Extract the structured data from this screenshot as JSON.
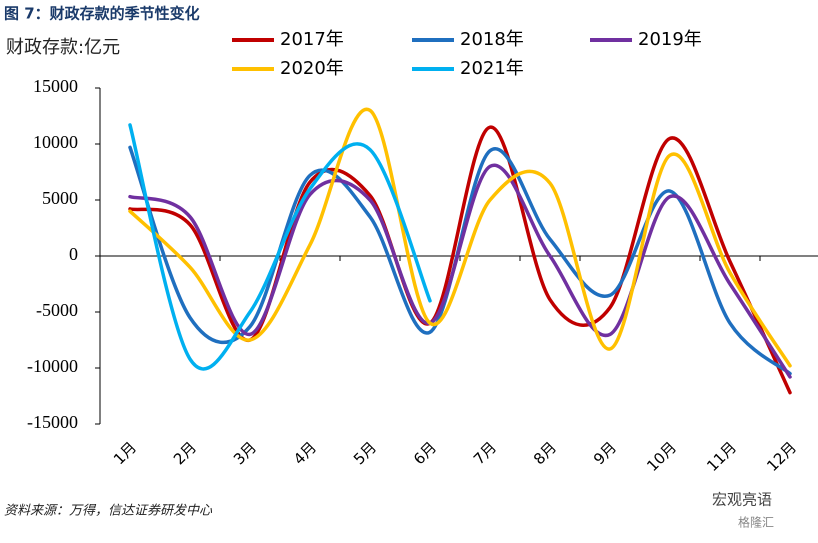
{
  "chart_data": {
    "type": "line",
    "title": "图 7：财政存款的季节性变化",
    "y_label": "财政存款:亿元",
    "source": "资料来源：万得，信达证券研发中心",
    "watermark": [
      "宏观亮语",
      "格隆汇"
    ],
    "categories": [
      "1月",
      "2月",
      "3月",
      "4月",
      "5月",
      "6月",
      "7月",
      "8月",
      "9月",
      "10月",
      "11月",
      "12月"
    ],
    "series": [
      {
        "name": "2017年",
        "color": "#c00000",
        "values": [
          4200,
          2800,
          -7500,
          6600,
          5400,
          -6000,
          11500,
          -3900,
          -4600,
          10500,
          -500,
          -12200
        ]
      },
      {
        "name": "2018年",
        "color": "#1f6fbf",
        "values": [
          9700,
          -5500,
          -6300,
          7200,
          3500,
          -6800,
          9400,
          1500,
          -3500,
          5800,
          -6000,
          -10500
        ]
      },
      {
        "name": "2019年",
        "color": "#7030a0",
        "values": [
          5300,
          3500,
          -7000,
          5500,
          5000,
          -6000,
          8000,
          0,
          -7000,
          5300,
          -2500,
          -10800
        ]
      },
      {
        "name": "2020年",
        "color": "#ffc000",
        "values": [
          4000,
          -1000,
          -7500,
          1000,
          13000,
          -6000,
          5000,
          6500,
          -8300,
          9000,
          -1500,
          -9800
        ]
      },
      {
        "name": "2021年",
        "color": "#00b0f0",
        "values": [
          11700,
          -9200,
          -5000,
          6000,
          9500,
          -4000,
          null,
          null,
          null,
          null,
          null,
          null
        ]
      }
    ],
    "ylim": [
      -15000,
      15000
    ],
    "yticks": [
      -15000,
      -10000,
      -5000,
      0,
      5000,
      10000,
      15000
    ]
  }
}
